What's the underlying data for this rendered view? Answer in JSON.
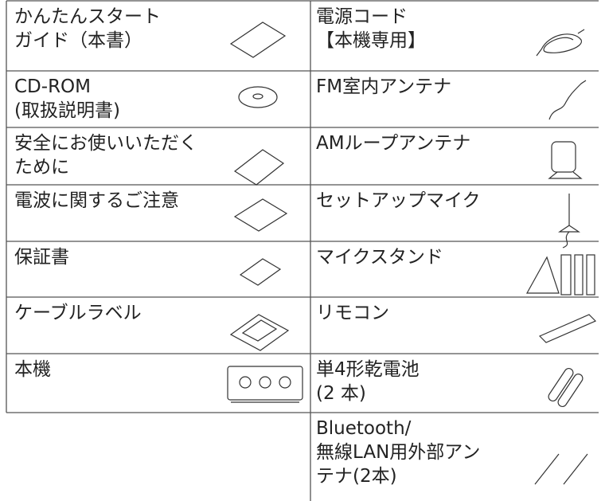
{
  "table": {
    "rows": [
      {
        "left": [
          "かんたんスタート",
          "ガイド（本書）"
        ],
        "right": [
          "電源コード",
          "【本機専用】"
        ]
      },
      {
        "left": [
          "CD-ROM",
          "(取扱説明書)"
        ],
        "right": [
          "FM室内アンテナ"
        ]
      },
      {
        "left": [
          "安全にお使いいただく",
          "ために"
        ],
        "right": [
          "AMループアンテナ"
        ]
      },
      {
        "left": [
          "電波に関するご注意"
        ],
        "right": [
          "セットアップマイク"
        ]
      },
      {
        "left": [
          "保証書"
        ],
        "right": [
          "マイクスタンド"
        ]
      },
      {
        "left": [
          "ケーブルラベル"
        ],
        "right": [
          "リモコン"
        ]
      },
      {
        "left": [
          "本機"
        ],
        "right": [
          "単4形乾電池",
          "(2 本)"
        ]
      },
      {
        "right": [
          "Bluetooth/",
          "無線LAN用外部アン",
          "テナ(2本)"
        ]
      }
    ]
  }
}
